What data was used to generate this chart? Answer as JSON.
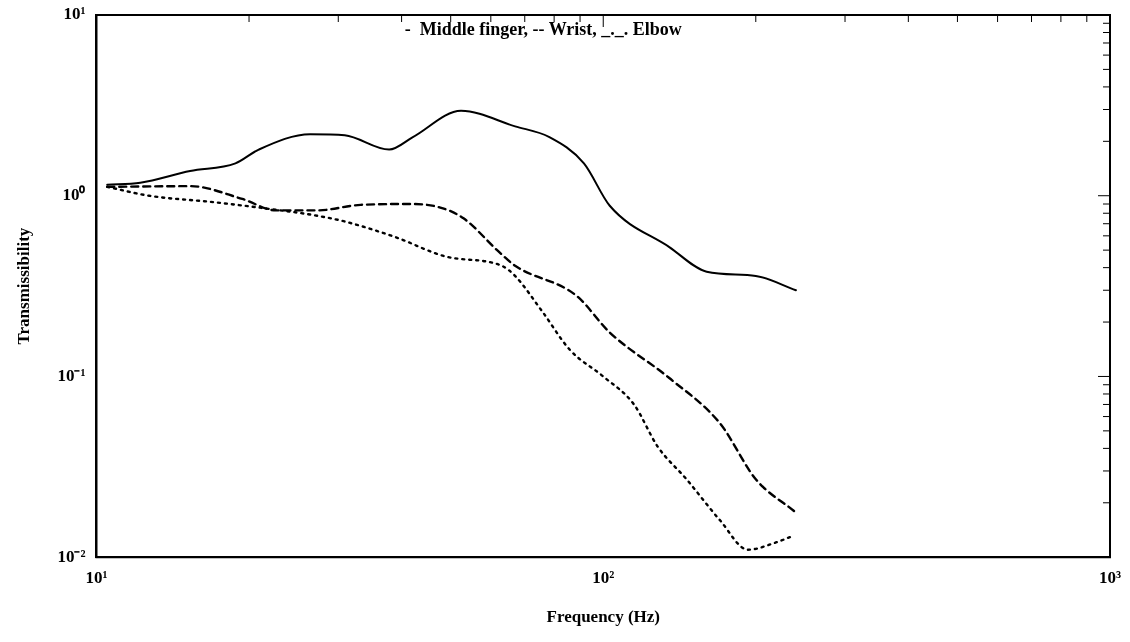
{
  "chart_data": {
    "type": "line",
    "xlabel": "Frequency (Hz)",
    "ylabel": "Transmissibility",
    "log": "xy",
    "grid": false,
    "legend": false,
    "marker": "none",
    "annotations": [
      "-  Middle finger, -- Wrist, _._. Elbow"
    ],
    "xlim": [
      10,
      1000
    ],
    "ylim": [
      0.01,
      10
    ],
    "xticks": [
      {
        "value": 10,
        "label": "10¹"
      },
      {
        "value": 20,
        "label": null
      },
      {
        "value": 30,
        "label": null
      },
      {
        "value": 40,
        "label": null
      },
      {
        "value": 50,
        "label": null
      },
      {
        "value": 60,
        "label": null
      },
      {
        "value": 70,
        "label": null
      },
      {
        "value": 80,
        "label": null
      },
      {
        "value": 90,
        "label": null
      },
      {
        "value": 100,
        "label": "10²"
      },
      {
        "value": 200,
        "label": null
      },
      {
        "value": 300,
        "label": null
      },
      {
        "value": 400,
        "label": null
      },
      {
        "value": 500,
        "label": null
      },
      {
        "value": 600,
        "label": null
      },
      {
        "value": 700,
        "label": null
      },
      {
        "value": 800,
        "label": null
      },
      {
        "value": 900,
        "label": null
      },
      {
        "value": 1000,
        "label": "10³"
      }
    ],
    "yticks": [
      {
        "value": 0.01,
        "label": "10⁻²"
      },
      {
        "value": 0.02,
        "label": null
      },
      {
        "value": 0.03,
        "label": null
      },
      {
        "value": 0.04,
        "label": null
      },
      {
        "value": 0.05,
        "label": null
      },
      {
        "value": 0.06,
        "label": null
      },
      {
        "value": 0.07,
        "label": null
      },
      {
        "value": 0.08,
        "label": null
      },
      {
        "value": 0.09,
        "label": null
      },
      {
        "value": 0.1,
        "label": "10⁻¹"
      },
      {
        "value": 0.2,
        "label": null
      },
      {
        "value": 0.3,
        "label": null
      },
      {
        "value": 0.4,
        "label": null
      },
      {
        "value": 0.5,
        "label": null
      },
      {
        "value": 0.6,
        "label": null
      },
      {
        "value": 0.7,
        "label": null
      },
      {
        "value": 0.8,
        "label": null
      },
      {
        "value": 0.9,
        "label": null
      },
      {
        "value": 1,
        "label": "10⁰"
      },
      {
        "value": 2,
        "label": null
      },
      {
        "value": 3,
        "label": null
      },
      {
        "value": 4,
        "label": null
      },
      {
        "value": 5,
        "label": null
      },
      {
        "value": 6,
        "label": null
      },
      {
        "value": 7,
        "label": null
      },
      {
        "value": 8,
        "label": null
      },
      {
        "value": 9,
        "label": null
      },
      {
        "value": 10,
        "label": "10¹"
      }
    ],
    "series": [
      {
        "color": "#000000",
        "line_style": "solid",
        "x": [
          10.5,
          12.2,
          15.3,
          18.8,
          20.9,
          26.4,
          30.9,
          37.8,
          42.1,
          52.4,
          67,
          78.3,
          91.6,
          103,
          135,
          160,
          200,
          240
        ],
        "values": [
          1.15,
          1.18,
          1.37,
          1.51,
          1.8,
          2.19,
          2.16,
          1.8,
          2.11,
          2.95,
          2.42,
          2.11,
          1.51,
          0.88,
          0.52,
          0.38,
          0.36,
          0.3
        ]
      },
      {
        "color": "#000000",
        "line_style": "dashed",
        "x": [
          10.5,
          15.3,
          19.4,
          22.6,
          27.3,
          33.2,
          42.1,
          47.7,
          53,
          62.2,
          67,
          88.5,
          103,
          135,
          170,
          200,
          238
        ],
        "values": [
          1.12,
          1.13,
          0.96,
          0.83,
          0.83,
          0.89,
          0.9,
          0.86,
          0.75,
          0.49,
          0.41,
          0.28,
          0.175,
          0.098,
          0.055,
          0.027,
          0.018
        ]
      },
      {
        "color": "#000000",
        "line_style": "dotted",
        "x": [
          10.5,
          12.7,
          17.1,
          21.6,
          26.9,
          30.9,
          38.9,
          49,
          63,
          67,
          75.7,
          86,
          100,
          115,
          128,
          146,
          170,
          193,
          218,
          235
        ],
        "values": [
          1.12,
          1.0,
          0.92,
          0.85,
          0.78,
          0.72,
          0.59,
          0.46,
          0.41,
          0.36,
          0.23,
          0.14,
          0.1,
          0.07,
          0.041,
          0.027,
          0.016,
          0.011,
          0.012,
          0.013
        ]
      }
    ]
  }
}
